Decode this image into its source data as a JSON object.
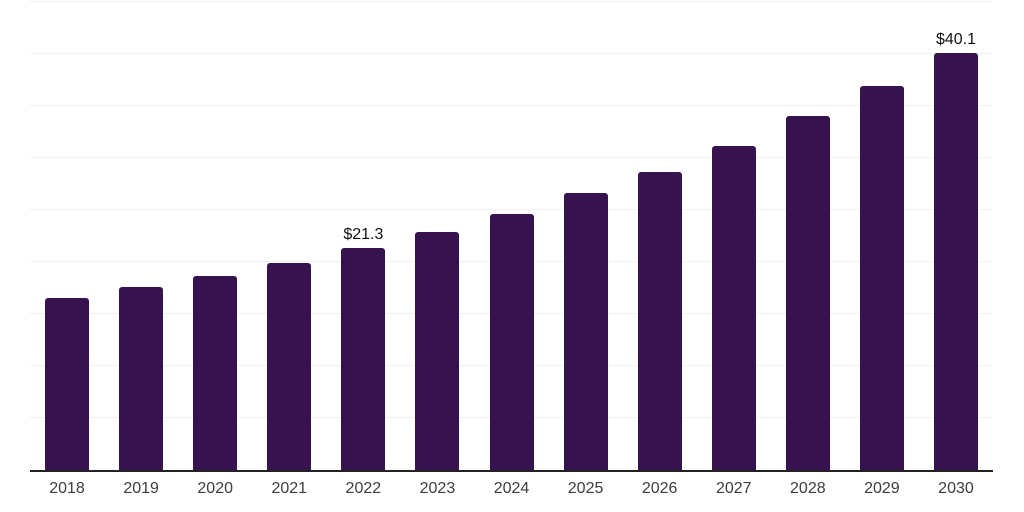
{
  "chart_data": {
    "type": "bar",
    "title": "",
    "xlabel": "",
    "ylabel": "",
    "categories": [
      "2018",
      "2019",
      "2020",
      "2021",
      "2022",
      "2023",
      "2024",
      "2025",
      "2026",
      "2027",
      "2028",
      "2029",
      "2030"
    ],
    "values": [
      16.5,
      17.6,
      18.7,
      19.9,
      21.3,
      22.9,
      24.6,
      26.6,
      28.7,
      31.2,
      34.0,
      36.9,
      40.1
    ],
    "bar_labels": [
      "",
      "",
      "",
      "",
      "$21.3",
      "",
      "",
      "",
      "",
      "",
      "",
      "",
      "$40.1"
    ],
    "ylim": [
      0,
      45
    ],
    "gridline_step": 5,
    "grid": "horizontal",
    "legend_position": "none",
    "y_axis_labels_visible": false
  },
  "style": {
    "bar_color": "#36124e",
    "grid_color": "#f0f0f0",
    "axis_color": "#222222",
    "tick_label_color": "#3d3d3d",
    "value_label_color": "#111111",
    "background": "#ffffff"
  }
}
